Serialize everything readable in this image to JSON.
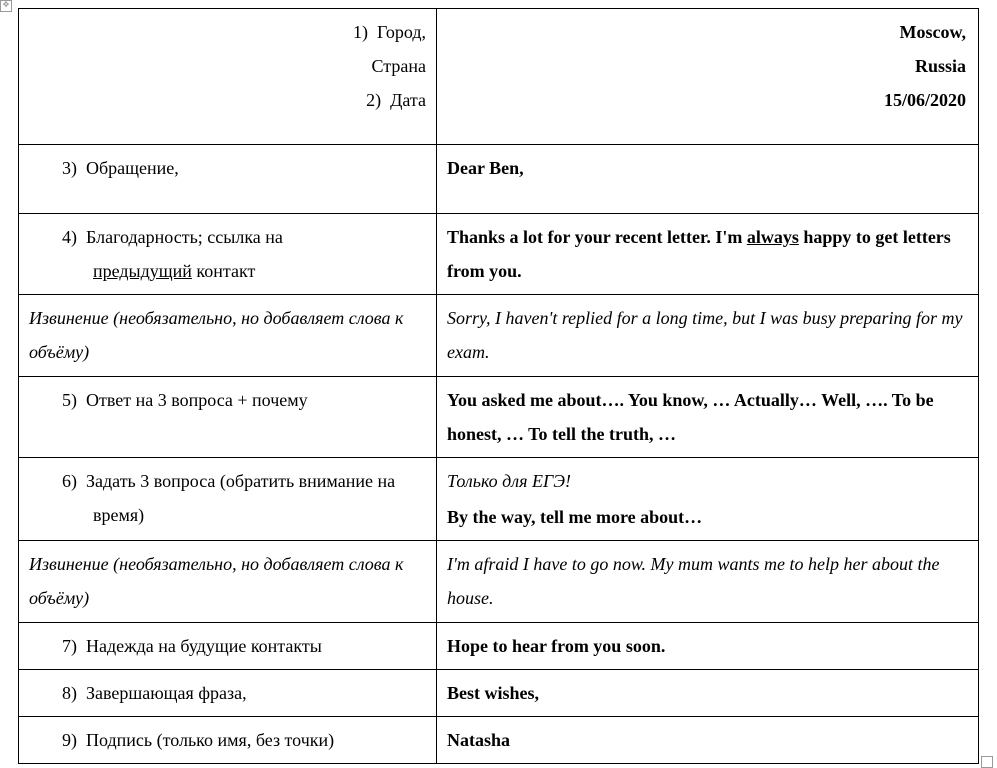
{
  "colors": {
    "background": "#ffffff",
    "text": "#000000",
    "border": "#000000",
    "marker_border": "#999999"
  },
  "typography": {
    "font_family": "Times New Roman",
    "base_size_pt": 14,
    "line_height": 1.9
  },
  "rows": {
    "r1": {
      "left_line1_num": "1",
      "left_line1": "Город,",
      "left_line2": "Страна",
      "left_line3_num": "2",
      "left_line3": "Дата",
      "right_line1": "Moscow,",
      "right_line2": "Russia",
      "right_line3": "15/06/2020"
    },
    "r2": {
      "left_num": "3",
      "left": "Обращение,",
      "right": "Dear Ben,"
    },
    "r3": {
      "left_num": "4",
      "left_pre": "Благодарность; ссылка на ",
      "left_under": "предыдущий",
      "left_post": " контакт",
      "right_pre": "Thanks a lot for your recent letter. I'm ",
      "right_under": "always",
      "right_post": " happy to get letters from you."
    },
    "r4": {
      "left": "Извинение (необязательно, но добавляет слова к объёму)",
      "right": "Sorry, I haven't replied for a long time, but I was busy preparing for my exam."
    },
    "r5": {
      "left_num": "5",
      "left": "Ответ на 3 вопроса + почему",
      "right": "You asked me about…. You know, … Actually… Well, …. To be honest, … To tell the truth, …"
    },
    "r6": {
      "left_num": "6",
      "left": "Задать 3 вопроса (обратить внимание на время)",
      "right_note": "Только для ЕГЭ!",
      "right_main": "By the way, tell me more about…"
    },
    "r7": {
      "left": "Извинение (необязательно, но добавляет слова к объёму)",
      "right": "I'm afraid I have to go now. My mum wants me to help her about the house."
    },
    "r8": {
      "left_num": "7",
      "left": "Надежда на будущие контакты",
      "right": "Hope to hear from you soon."
    },
    "r9": {
      "left_num": "8",
      "left": "Завершающая фраза,",
      "right": "Best wishes,"
    },
    "r10": {
      "left_num": "9",
      "left": "Подпись (только имя, без точки)",
      "right": "Natasha"
    }
  }
}
